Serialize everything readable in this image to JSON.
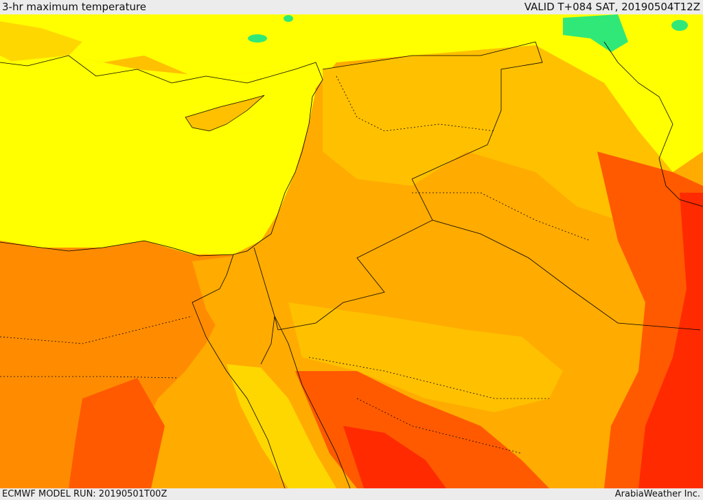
{
  "header": {
    "product_title": "3-hr maximum temperature",
    "valid_time": "VALID T+084 SAT, 20190504T12Z"
  },
  "footer": {
    "model_run": "ECMWF MODEL RUN: 20190501T00Z",
    "credit": "ArabiaWeather Inc."
  },
  "palette": {
    "green": "#30e878",
    "yellow_green": "#c8f020",
    "yellow": "#ffff00",
    "gold": "#ffd700",
    "light_orange": "#ffc000",
    "orange": "#ffab00",
    "dark_orange": "#ff8c00",
    "red_orange": "#ff5a00",
    "red": "#ff2a00",
    "border_color": "#000000"
  }
}
